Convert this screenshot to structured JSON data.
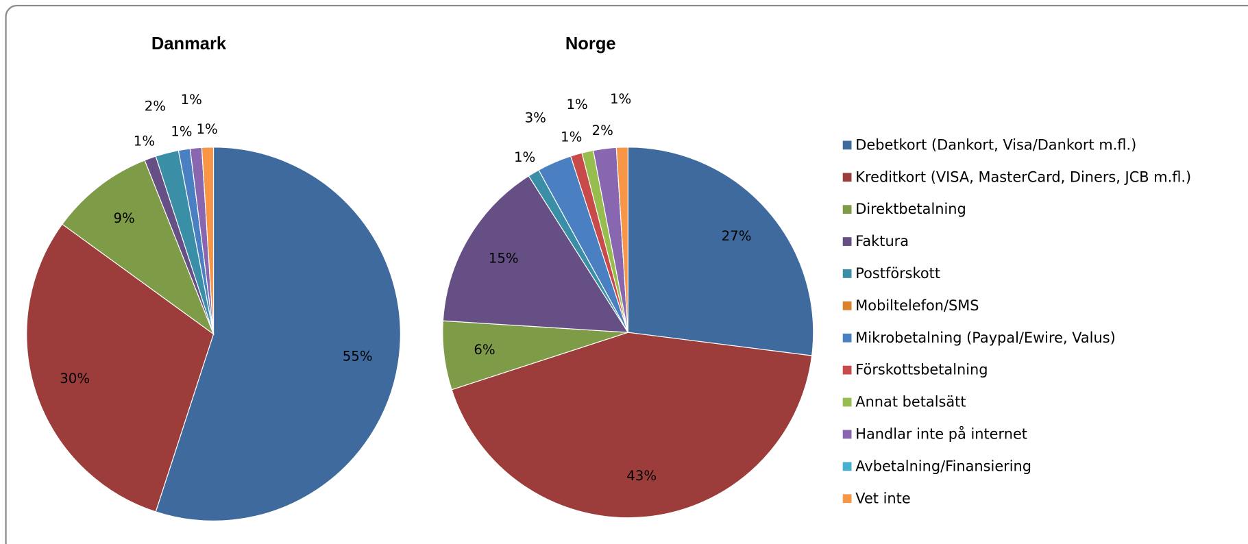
{
  "legend": {
    "categories": [
      "Debetkort (Dankort, Visa/Dankort m.fl.)",
      "Kreditkort (VISA, MasterCard, Diners, JCB m.fl.)",
      "Direktbetalning",
      "Faktura",
      "Postförskott",
      "Mobiltelefon/SMS",
      "Mikrobetalning (Paypal/Ewire, Valus)",
      "Förskottsbetalning",
      "Annat betalsätt",
      "Handlar inte på internet",
      "Avbetalning/Finansiering",
      "Vet inte"
    ],
    "colors": [
      "#3f6a9e",
      "#9c3d3b",
      "#7e9b48",
      "#664f85",
      "#3a8ea5",
      "#d9822b",
      "#4a7fc1",
      "#c84a49",
      "#97bd4f",
      "#8866b0",
      "#45b0cf",
      "#f79646"
    ]
  },
  "chart_data": [
    {
      "type": "pie",
      "title": "Danmark",
      "values": [
        55,
        30,
        9,
        1,
        2,
        0,
        1,
        0,
        0,
        1,
        0,
        1
      ],
      "value_labels": [
        "55%",
        "30%",
        "9%",
        "1%",
        "2%",
        null,
        "1%",
        null,
        null,
        "1%",
        null,
        "1%"
      ]
    },
    {
      "type": "pie",
      "title": "Norge",
      "values": [
        27,
        43,
        6,
        15,
        1,
        0,
        3,
        1,
        1,
        2,
        0,
        1
      ],
      "value_labels": [
        "27%",
        "43%",
        "6%",
        "15%",
        "1%",
        null,
        "3%",
        "1%",
        "1%",
        "2%",
        null,
        "1%"
      ]
    }
  ]
}
